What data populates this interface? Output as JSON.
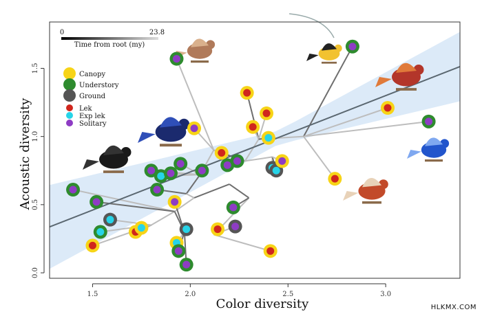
{
  "watermark": "HLKMX.COM",
  "chart_data": {
    "type": "scatter",
    "title": "",
    "xlabel": "Color diversity",
    "ylabel": "Acoustic diversity",
    "xlim": [
      1.28,
      3.38
    ],
    "ylim": [
      -0.04,
      1.84
    ],
    "xticks": [
      1.5,
      2.0,
      2.5,
      3.0
    ],
    "xtick_labels": [
      "1.5",
      "2.0",
      "2.5",
      "3.0"
    ],
    "yticks": [
      0.0,
      0.5,
      1.0,
      1.5
    ],
    "ytick_labels": [
      "0.0",
      "0.5",
      "1.0",
      "1.5"
    ],
    "grid": false,
    "scale_bar": {
      "label": "Time from root (my)",
      "min_label": "0",
      "max_label": "23.8"
    },
    "legend": {
      "placement": "top-left",
      "habitat": [
        {
          "label": "Canopy",
          "color": "#f7d417"
        },
        {
          "label": "Understory",
          "color": "#2e8b2e"
        },
        {
          "label": "Ground",
          "color": "#555555"
        }
      ],
      "mating": [
        {
          "label": "Lek",
          "color": "#d0261d"
        },
        {
          "label": "Exp lek",
          "color": "#27d4e8"
        },
        {
          "label": "Solitary",
          "color": "#8e3cc4"
        }
      ]
    },
    "regression": {
      "intercept": -0.38,
      "slope": 0.56,
      "band_color": "#d6e6f7",
      "line_color": "#5a6770"
    },
    "points": [
      {
        "x": 1.4,
        "y": 0.61,
        "habitat": "Understory",
        "mating": "Solitary"
      },
      {
        "x": 1.5,
        "y": 0.2,
        "habitat": "Canopy",
        "mating": "Lek"
      },
      {
        "x": 1.52,
        "y": 0.52,
        "habitat": "Understory",
        "mating": "Solitary"
      },
      {
        "x": 1.54,
        "y": 0.3,
        "habitat": "Understory",
        "mating": "Exp lek"
      },
      {
        "x": 1.59,
        "y": 0.39,
        "habitat": "Ground",
        "mating": "Exp lek"
      },
      {
        "x": 1.72,
        "y": 0.3,
        "habitat": "Canopy",
        "mating": "Lek"
      },
      {
        "x": 1.75,
        "y": 0.33,
        "habitat": "Canopy",
        "mating": "Exp lek"
      },
      {
        "x": 1.8,
        "y": 0.75,
        "habitat": "Understory",
        "mating": "Solitary"
      },
      {
        "x": 1.83,
        "y": 0.61,
        "habitat": "Understory",
        "mating": "Solitary"
      },
      {
        "x": 1.85,
        "y": 0.71,
        "habitat": "Understory",
        "mating": "Exp lek"
      },
      {
        "x": 1.9,
        "y": 0.73,
        "habitat": "Understory",
        "mating": "Solitary"
      },
      {
        "x": 1.92,
        "y": 0.52,
        "habitat": "Canopy",
        "mating": "Solitary"
      },
      {
        "x": 1.93,
        "y": 0.22,
        "habitat": "Canopy",
        "mating": "Exp lek"
      },
      {
        "x": 1.93,
        "y": 1.57,
        "habitat": "Understory",
        "mating": "Solitary"
      },
      {
        "x": 1.94,
        "y": 0.16,
        "habitat": "Understory",
        "mating": "Solitary"
      },
      {
        "x": 1.95,
        "y": 0.8,
        "habitat": "Understory",
        "mating": "Solitary"
      },
      {
        "x": 1.98,
        "y": 0.32,
        "habitat": "Ground",
        "mating": "Exp lek"
      },
      {
        "x": 1.98,
        "y": 0.06,
        "habitat": "Understory",
        "mating": "Solitary"
      },
      {
        "x": 2.02,
        "y": 1.06,
        "habitat": "Canopy",
        "mating": "Solitary"
      },
      {
        "x": 2.06,
        "y": 0.75,
        "habitat": "Understory",
        "mating": "Solitary"
      },
      {
        "x": 2.14,
        "y": 0.32,
        "habitat": "Canopy",
        "mating": "Lek"
      },
      {
        "x": 2.16,
        "y": 0.88,
        "habitat": "Canopy",
        "mating": "Lek"
      },
      {
        "x": 2.19,
        "y": 0.79,
        "habitat": "Understory",
        "mating": "Solitary"
      },
      {
        "x": 2.22,
        "y": 0.48,
        "habitat": "Understory",
        "mating": "Solitary"
      },
      {
        "x": 2.23,
        "y": 0.34,
        "habitat": "Ground",
        "mating": "Solitary"
      },
      {
        "x": 2.24,
        "y": 0.82,
        "habitat": "Understory",
        "mating": "Solitary"
      },
      {
        "x": 2.29,
        "y": 1.32,
        "habitat": "Canopy",
        "mating": "Lek"
      },
      {
        "x": 2.32,
        "y": 1.07,
        "habitat": "Canopy",
        "mating": "Lek"
      },
      {
        "x": 2.39,
        "y": 1.17,
        "habitat": "Canopy",
        "mating": "Lek"
      },
      {
        "x": 2.4,
        "y": 0.99,
        "habitat": "Canopy",
        "mating": "Exp lek"
      },
      {
        "x": 2.41,
        "y": 0.16,
        "habitat": "Canopy",
        "mating": "Lek"
      },
      {
        "x": 2.42,
        "y": 0.77,
        "habitat": "Ground",
        "mating": "Exp lek"
      },
      {
        "x": 2.44,
        "y": 0.75,
        "habitat": "Ground",
        "mating": "Exp lek"
      },
      {
        "x": 2.47,
        "y": 0.82,
        "habitat": "Canopy",
        "mating": "Solitary"
      },
      {
        "x": 2.74,
        "y": 0.69,
        "habitat": "Canopy",
        "mating": "Lek"
      },
      {
        "x": 2.83,
        "y": 1.66,
        "habitat": "Understory",
        "mating": "Solitary"
      },
      {
        "x": 3.01,
        "y": 1.21,
        "habitat": "Canopy",
        "mating": "Lek"
      },
      {
        "x": 3.22,
        "y": 1.11,
        "habitat": "Understory",
        "mating": "Solitary"
      }
    ]
  }
}
